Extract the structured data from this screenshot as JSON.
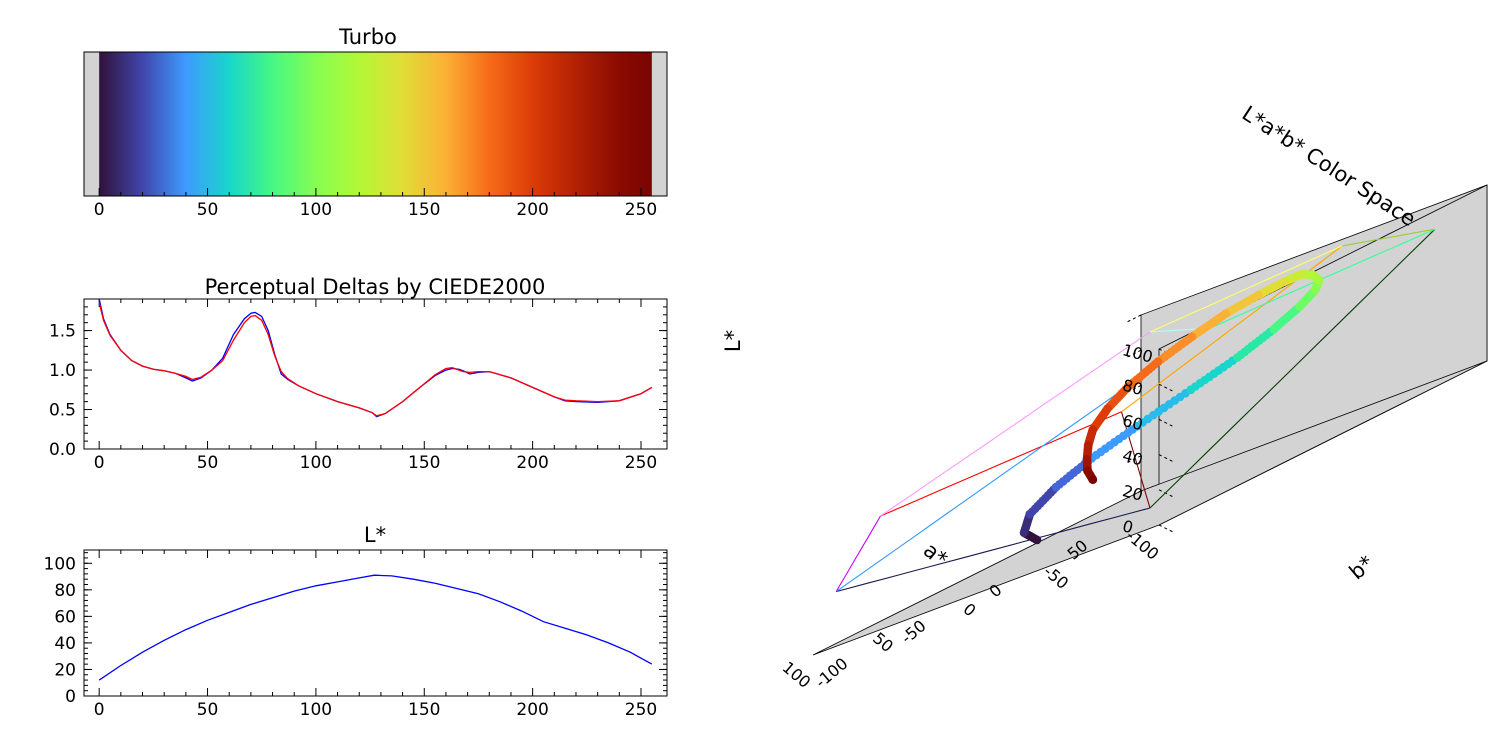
{
  "chart_data": [
    {
      "type": "colorbar",
      "title": "Turbo",
      "xlim": [
        -7,
        262
      ],
      "xticks": [
        0,
        50,
        100,
        150,
        200,
        250
      ],
      "bar_range": [
        0,
        255
      ],
      "colors": [
        [
          0,
          "#30123b"
        ],
        [
          20,
          "#4145ab"
        ],
        [
          40,
          "#3e9bfe"
        ],
        [
          60,
          "#18d6cb"
        ],
        [
          80,
          "#46f884"
        ],
        [
          100,
          "#86fd52"
        ],
        [
          120,
          "#b3f836"
        ],
        [
          140,
          "#e1dd37"
        ],
        [
          160,
          "#fcb036"
        ],
        [
          180,
          "#f66b19"
        ],
        [
          200,
          "#dc3c07"
        ],
        [
          220,
          "#b22104"
        ],
        [
          240,
          "#8a0b01"
        ],
        [
          255,
          "#7a0403"
        ]
      ]
    },
    {
      "type": "line",
      "title": "Perceptual Deltas by CIEDE2000",
      "xlim": [
        -7,
        262
      ],
      "ylim": [
        0,
        1.9
      ],
      "xticks": [
        0,
        50,
        100,
        150,
        200,
        250
      ],
      "yticks": [
        0.0,
        0.5,
        1.0,
        1.5
      ],
      "ytick_labels": [
        "0.0",
        "0.5",
        "1.0",
        "1.5"
      ],
      "series": [
        {
          "name": "blue",
          "color": "#0000ff",
          "x": [
            0,
            2,
            5,
            10,
            15,
            20,
            25,
            30,
            35,
            40,
            43,
            47,
            52,
            57,
            62,
            67,
            70,
            72,
            75,
            78,
            81,
            84,
            87,
            92,
            100,
            110,
            120,
            126,
            128,
            132,
            140,
            148,
            155,
            160,
            163,
            166,
            168,
            171,
            175,
            180,
            190,
            200,
            210,
            215,
            220,
            230,
            240,
            250,
            255
          ],
          "y": [
            1.9,
            1.65,
            1.45,
            1.25,
            1.12,
            1.05,
            1.01,
            0.99,
            0.96,
            0.9,
            0.86,
            0.9,
            1.0,
            1.15,
            1.45,
            1.65,
            1.72,
            1.73,
            1.68,
            1.5,
            1.2,
            0.95,
            0.88,
            0.8,
            0.7,
            0.6,
            0.52,
            0.46,
            0.41,
            0.45,
            0.6,
            0.78,
            0.93,
            1.0,
            1.02,
            1.01,
            0.99,
            0.95,
            0.97,
            0.98,
            0.9,
            0.78,
            0.66,
            0.61,
            0.6,
            0.59,
            0.61,
            0.7,
            0.78
          ]
        },
        {
          "name": "red",
          "color": "#ff0000",
          "x": [
            0,
            2,
            5,
            10,
            15,
            20,
            25,
            30,
            35,
            40,
            43,
            47,
            52,
            57,
            62,
            67,
            70,
            72,
            75,
            78,
            81,
            84,
            87,
            92,
            100,
            110,
            120,
            126,
            128,
            132,
            140,
            148,
            155,
            160,
            163,
            166,
            168,
            171,
            175,
            180,
            190,
            200,
            210,
            215,
            220,
            230,
            240,
            250,
            255
          ],
          "y": [
            1.85,
            1.63,
            1.44,
            1.25,
            1.12,
            1.05,
            1.01,
            0.99,
            0.96,
            0.92,
            0.88,
            0.91,
            1.0,
            1.12,
            1.38,
            1.6,
            1.68,
            1.69,
            1.63,
            1.45,
            1.18,
            0.98,
            0.89,
            0.8,
            0.7,
            0.6,
            0.52,
            0.46,
            0.42,
            0.45,
            0.6,
            0.78,
            0.94,
            1.02,
            1.03,
            1.0,
            0.98,
            0.97,
            0.98,
            0.98,
            0.9,
            0.78,
            0.66,
            0.62,
            0.61,
            0.6,
            0.61,
            0.7,
            0.78
          ]
        }
      ]
    },
    {
      "type": "line",
      "title": "L*",
      "xlim": [
        -7,
        262
      ],
      "ylim": [
        0,
        110
      ],
      "xticks": [
        0,
        50,
        100,
        150,
        200,
        250
      ],
      "yticks": [
        0,
        20,
        40,
        60,
        80,
        100
      ],
      "series": [
        {
          "name": "L*",
          "color": "#0000ff",
          "x": [
            0,
            10,
            20,
            30,
            40,
            50,
            60,
            70,
            80,
            90,
            100,
            110,
            120,
            127,
            135,
            145,
            155,
            165,
            175,
            185,
            195,
            205,
            215,
            225,
            235,
            245,
            255
          ],
          "y": [
            12,
            23,
            33,
            42,
            50,
            57,
            63,
            69,
            74,
            79,
            83,
            86,
            89,
            91,
            90.5,
            88,
            85,
            81,
            77,
            71,
            64,
            56,
            51,
            46,
            40,
            33,
            24
          ]
        }
      ]
    },
    {
      "type": "scatter3d",
      "title": "L*a*b* Color Space",
      "zlabel": "L*",
      "xlabel": "a*",
      "ylabel": "b*",
      "zticks": [
        0,
        20,
        40,
        60,
        80,
        100
      ],
      "xticks": [
        -100,
        -50,
        0,
        50,
        100
      ],
      "yticks": [
        -100,
        -50,
        0,
        50
      ],
      "xlim": [
        -100,
        100
      ],
      "ylim": [
        -100,
        100
      ],
      "zlim": [
        0,
        100
      ],
      "trajectory": [
        [
          12,
          16,
          -52
        ],
        [
          20,
          14,
          -62
        ],
        [
          30,
          5,
          -68
        ],
        [
          40,
          -12,
          -70
        ],
        [
          48,
          -26,
          -63
        ],
        [
          55,
          -40,
          -50
        ],
        [
          62,
          -52,
          -30
        ],
        [
          68,
          -60,
          -10
        ],
        [
          74,
          -62,
          10
        ],
        [
          79,
          -58,
          30
        ],
        [
          83,
          -50,
          48
        ],
        [
          86,
          -38,
          63
        ],
        [
          89,
          -24,
          74
        ],
        [
          91,
          -10,
          82
        ],
        [
          90,
          4,
          86
        ],
        [
          88,
          18,
          85
        ],
        [
          85,
          32,
          80
        ],
        [
          80,
          44,
          72
        ],
        [
          74,
          56,
          64
        ],
        [
          67,
          65,
          55
        ],
        [
          60,
          70,
          48
        ],
        [
          52,
          71,
          40
        ],
        [
          45,
          67,
          33
        ],
        [
          38,
          62,
          27
        ],
        [
          32,
          57,
          22
        ],
        [
          26,
          52,
          20
        ]
      ],
      "trajectory_colors": [
        "#30123b",
        "#3b2d7a",
        "#4145ab",
        "#4466d9",
        "#3e9bfe",
        "#28bceb",
        "#18d6cb",
        "#26e9a6",
        "#46f884",
        "#6bfe64",
        "#86fd52",
        "#a3fa3f",
        "#b3f836",
        "#cbeb37",
        "#e1dd37",
        "#f2c63a",
        "#fcb036",
        "#fb8e28",
        "#f66b19",
        "#e8510f",
        "#dc3c07",
        "#c82b04",
        "#b22104",
        "#9f1502",
        "#8a0b01",
        "#7a0403"
      ],
      "gamut_corners": {
        "black": [
          0,
          0,
          0
        ],
        "red": [
          53,
          80,
          67
        ],
        "green": [
          88,
          -86,
          83
        ],
        "blue": [
          32,
          79,
          -108
        ],
        "yellow": [
          97,
          -22,
          94
        ],
        "cyan": [
          91,
          -48,
          -14
        ],
        "magenta": [
          60,
          98,
          -61
        ],
        "white": [
          100,
          0,
          0
        ]
      }
    }
  ]
}
